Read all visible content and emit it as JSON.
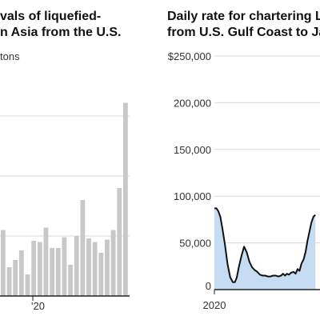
{
  "chart_data": [
    {
      "type": "bar",
      "title": "vals of liquefied-\nn Asia from the U.S.",
      "unit_label": "tons",
      "x_tick_labels": [
        "'20"
      ],
      "values": [
        55,
        24,
        30,
        38,
        18,
        46,
        45,
        57,
        40,
        40,
        49,
        26,
        50,
        80,
        48,
        45,
        36,
        47,
        55,
        90,
        161
      ],
      "ylim": [
        0,
        200
      ],
      "grid": true,
      "colors": {
        "bar": "#c8c8c8",
        "grid": "#d9d9d9",
        "axis": "#222222"
      }
    },
    {
      "type": "area",
      "title": "Daily rate for chartering L\nfrom U.S. Gulf Coast to Jap",
      "y_tick_labels": [
        "$250,000",
        "200,000",
        "150,000",
        "100,000",
        "50,000",
        "0"
      ],
      "x_tick_labels": [
        "2020"
      ],
      "ylim": [
        0,
        250000
      ],
      "grid": true,
      "series": [
        {
          "x": [
            2020.0,
            2020.03,
            2020.06,
            2020.09,
            2020.12,
            2020.16,
            2020.2,
            2020.24,
            2020.28,
            2020.31,
            2020.34,
            2020.37,
            2020.41,
            2020.45,
            2020.49,
            2020.53,
            2020.57,
            2020.61,
            2020.65,
            2020.69,
            2020.73,
            2020.77,
            2020.81,
            2020.85,
            2020.89,
            2020.93,
            2020.97,
            2021.01,
            2021.04,
            2021.07,
            2021.1,
            2021.13,
            2021.16,
            2021.2,
            2021.23,
            2021.26,
            2021.29,
            2021.32,
            2021.35,
            2021.38,
            2021.41,
            2021.44,
            2021.47,
            2021.5,
            2021.53
          ],
          "values": [
            87000,
            87000,
            84000,
            78000,
            66000,
            48000,
            27000,
            13000,
            8000,
            8000,
            13000,
            24000,
            36000,
            46000,
            40000,
            30000,
            24000,
            21000,
            19000,
            16000,
            15000,
            15000,
            14000,
            14000,
            15000,
            15000,
            14000,
            15000,
            17000,
            15000,
            17000,
            16000,
            18000,
            19000,
            17000,
            22000,
            20000,
            28000,
            32000,
            40000,
            52000,
            62000,
            72000,
            78000,
            80000
          ]
        }
      ],
      "colors": {
        "line": "#111111",
        "fill": "#c6dcf2",
        "grid": "#d9d9d9",
        "axis": "#222222"
      }
    }
  ]
}
